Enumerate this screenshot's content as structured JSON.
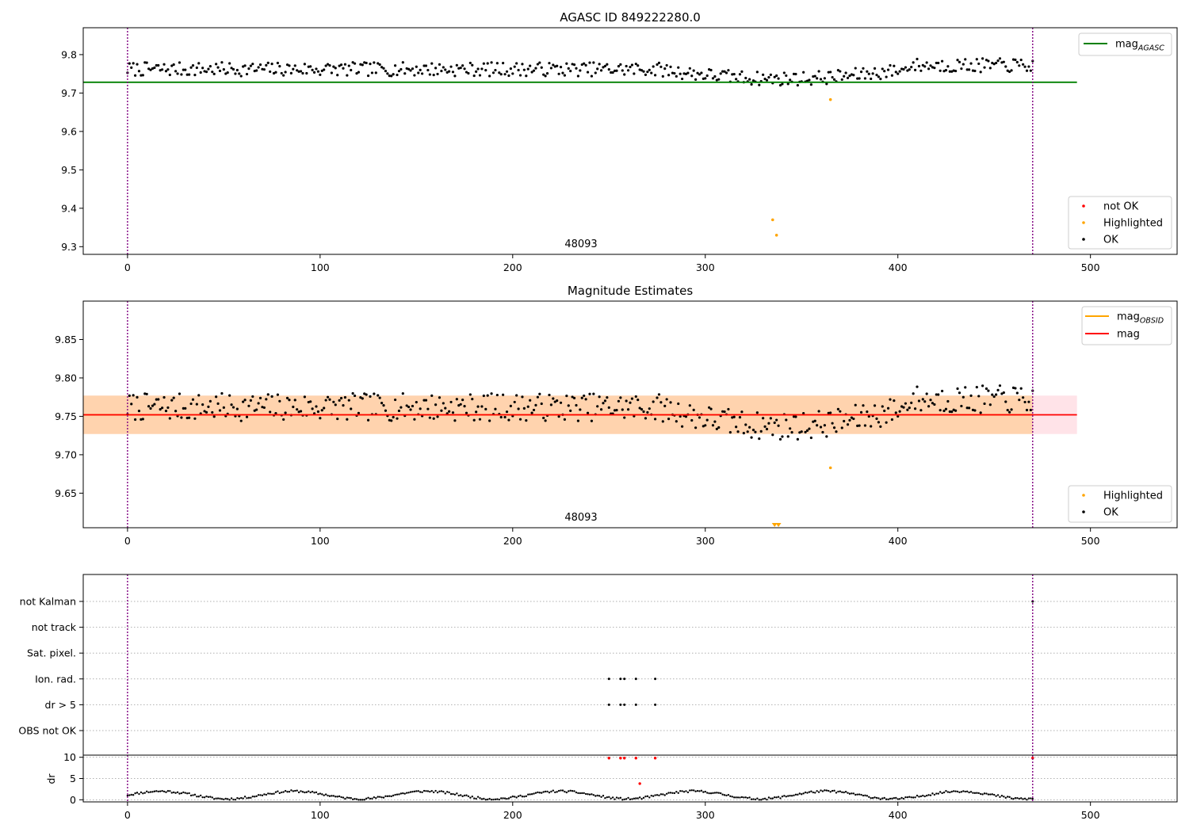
{
  "chart_data": [
    {
      "type": "scatter",
      "title": "AGASC ID 849222280.0",
      "xlim": [
        -23,
        545
      ],
      "ylim": [
        9.28,
        9.87
      ],
      "xticks": [
        0,
        100,
        200,
        300,
        400,
        500
      ],
      "yticks": [
        9.3,
        9.4,
        9.5,
        9.6,
        9.7,
        9.8
      ],
      "ytick_decimals": 1,
      "obsid_label": "48093",
      "obsid_label_x": 235,
      "obsid_boundaries": [
        0,
        470
      ],
      "lines": [
        {
          "name": "mag_AGASC",
          "color": "#008000",
          "y": 9.728,
          "x_range": [
            -23,
            493
          ]
        }
      ],
      "mag_wave": {
        "base": 9.762,
        "amp": 0.025,
        "noise": 0.018,
        "y0": 9.735,
        "y1": 9.775,
        "seed": 7
      },
      "highlighted_points": [
        {
          "x": 365,
          "y": 9.683
        },
        {
          "x": 335,
          "y": 9.37
        },
        {
          "x": 337,
          "y": 9.33
        }
      ],
      "series_colors": {
        "not OK": "#ff0000",
        "Highlighted": "#ffa500",
        "OK": "#000000"
      },
      "legend_lines": [
        {
          "name": "mag",
          "sub": "AGASC",
          "color": "#008000"
        }
      ],
      "legend_points": [
        "not OK",
        "Highlighted",
        "OK"
      ],
      "legend_lines_placement": "top-right",
      "legend_points_placement": "bottom-right"
    },
    {
      "type": "scatter",
      "title": "Magnitude Estimates",
      "xlim": [
        -23,
        545
      ],
      "ylim": [
        9.605,
        9.9
      ],
      "xticks": [
        0,
        100,
        200,
        300,
        400,
        500
      ],
      "yticks": [
        9.65,
        9.7,
        9.75,
        9.8,
        9.85
      ],
      "ytick_decimals": 2,
      "obsid_label": "48093",
      "obsid_label_x": 235,
      "obsid_boundaries": [
        0,
        470
      ],
      "lines": [
        {
          "name": "mag_OBSID",
          "color": "#ffa500",
          "y": 9.752,
          "x_range": [
            -23,
            470
          ]
        },
        {
          "name": "mag",
          "color": "#ff0000",
          "y": 9.752,
          "x_range": [
            -23,
            493
          ]
        }
      ],
      "bands": [
        {
          "name": "mag",
          "color": "#ffc0cb",
          "y0": 9.727,
          "y1": 9.777,
          "x_range": [
            -23,
            493
          ],
          "opacity": 0.45
        },
        {
          "name": "mag_OBSID",
          "color": "#ffa500",
          "y0": 9.727,
          "y1": 9.777,
          "x_range": [
            -23,
            470
          ],
          "opacity": 0.25
        }
      ],
      "mag_wave": {
        "base": 9.762,
        "amp": 0.025,
        "noise": 0.018,
        "y0": 9.735,
        "y1": 9.775,
        "seed": 7
      },
      "highlighted_points": [
        {
          "x": 365,
          "y": 9.683
        }
      ],
      "out_of_range_markers": [
        {
          "x": 336
        },
        {
          "x": 338
        }
      ],
      "series_colors": {
        "Highlighted": "#ffa500",
        "OK": "#000000"
      },
      "legend_lines": [
        {
          "name": "mag",
          "sub": "OBSID",
          "color": "#ffa500"
        },
        {
          "name": "mag",
          "sub": "",
          "color": "#ff0000"
        }
      ],
      "legend_points": [
        "Highlighted",
        "OK"
      ],
      "legend_lines_placement": "top-right",
      "legend_points_placement": "bottom-right"
    },
    {
      "type": "scatter",
      "xlim": [
        -23,
        545
      ],
      "xticks": [
        0,
        100,
        200,
        300,
        400,
        500
      ],
      "flag_categories": [
        "not Kalman",
        "not track",
        "Sat. pixel.",
        "Ion. rad.",
        "dr > 5",
        "OBS not OK"
      ],
      "flags": {
        "Ion. rad.": [
          250,
          256,
          258,
          264,
          274
        ],
        "dr > 5": [
          250,
          256,
          258,
          264,
          274
        ],
        "not Kalman": [
          470
        ]
      },
      "dr_panel": {
        "ylabel": "dr",
        "yticks": [
          0,
          5,
          10
        ],
        "ylim": [
          -0.5,
          10.5
        ],
        "red_points": [
          {
            "x": 250,
            "y": 9.8
          },
          {
            "x": 256,
            "y": 9.8
          },
          {
            "x": 258,
            "y": 9.8
          },
          {
            "x": 264,
            "y": 9.8
          },
          {
            "x": 274,
            "y": 9.8
          },
          {
            "x": 470,
            "y": 9.8
          },
          {
            "x": 266,
            "y": 3.8
          }
        ]
      }
    }
  ]
}
